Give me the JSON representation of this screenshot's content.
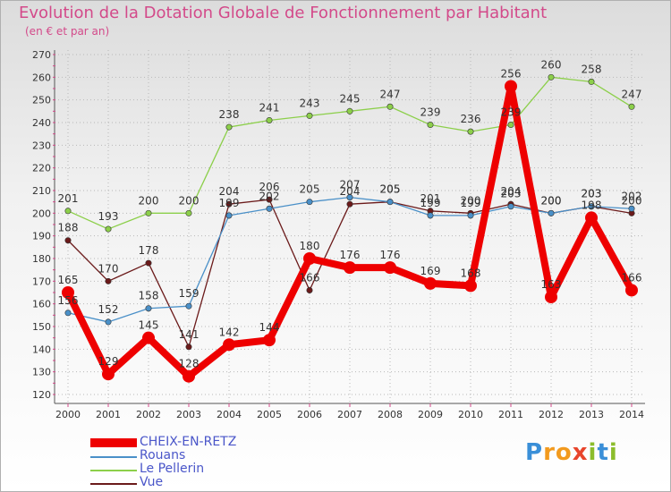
{
  "title": "Evolution de la Dotation Globale de Fonctionnement par Habitant",
  "subtitle": "(en € et par an)",
  "logo": {
    "text": "Proxiti",
    "letters": [
      "P",
      "r",
      "o",
      "x",
      "i",
      "t",
      "i"
    ],
    "colors": [
      "#3a8fd8",
      "#f29a1e",
      "#f29a1e",
      "#e8452c",
      "#8cbd2c",
      "#3a8fd8",
      "#8cbd2c"
    ]
  },
  "chart_data": {
    "type": "line",
    "title": "Evolution de la Dotation Globale de Fonctionnement par Habitant",
    "subtitle": "(en € et par an)",
    "xlabel": "",
    "ylabel": "",
    "ylim": [
      120,
      270
    ],
    "ytick_step": 10,
    "grid": true,
    "legend_position": "bottom-left",
    "categories": [
      "2000",
      "2001",
      "2002",
      "2003",
      "2004",
      "2005",
      "2006",
      "2007",
      "2008",
      "2009",
      "2010",
      "2011",
      "2012",
      "2013",
      "2014"
    ],
    "series": [
      {
        "name": "Vue",
        "color": "#6b1a1a",
        "values": [
          188,
          170,
          178,
          141,
          204,
          206,
          166,
          204,
          205,
          201,
          200,
          204,
          200,
          203,
          200
        ]
      },
      {
        "name": "Le Pellerin",
        "color": "#8ccf4a",
        "values": [
          201,
          193,
          200,
          200,
          238,
          241,
          243,
          245,
          247,
          239,
          236,
          239,
          260,
          258,
          247
        ]
      },
      {
        "name": "Rouans",
        "color": "#4a90c8",
        "values": [
          156,
          152,
          158,
          159,
          199,
          202,
          205,
          207,
          205,
          199,
          199,
          203,
          200,
          203,
          202
        ]
      },
      {
        "name": "CHEIX-EN-RETZ",
        "color": "#ee0000",
        "values": [
          165,
          129,
          145,
          128,
          142,
          144,
          180,
          176,
          176,
          169,
          168,
          256,
          163,
          198,
          166
        ]
      }
    ],
    "legend": [
      "CHEIX-EN-RETZ",
      "Rouans",
      "Le Pellerin",
      "Vue"
    ]
  }
}
